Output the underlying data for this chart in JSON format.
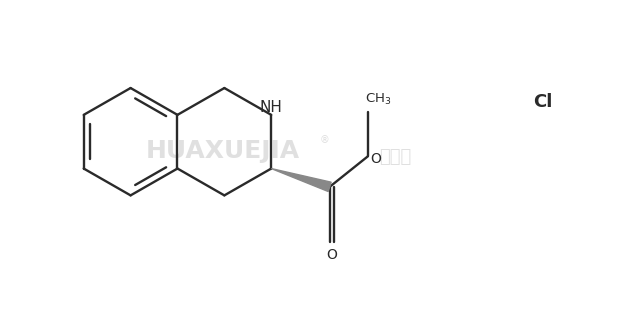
{
  "background_color": "#ffffff",
  "line_color": "#2a2a2a",
  "stereo_color": "#888888",
  "text_color": "#2a2a2a",
  "watermark_color": "#d0d0d0",
  "fig_width": 6.18,
  "fig_height": 3.2,
  "dpi": 100,
  "bond_lw": 1.7,
  "watermark_fontsize": 18,
  "label_fontsize": 10,
  "NH_label": "NH",
  "O_label": "O",
  "CH3_label": "CH$_3$",
  "Cl_label": "Cl"
}
